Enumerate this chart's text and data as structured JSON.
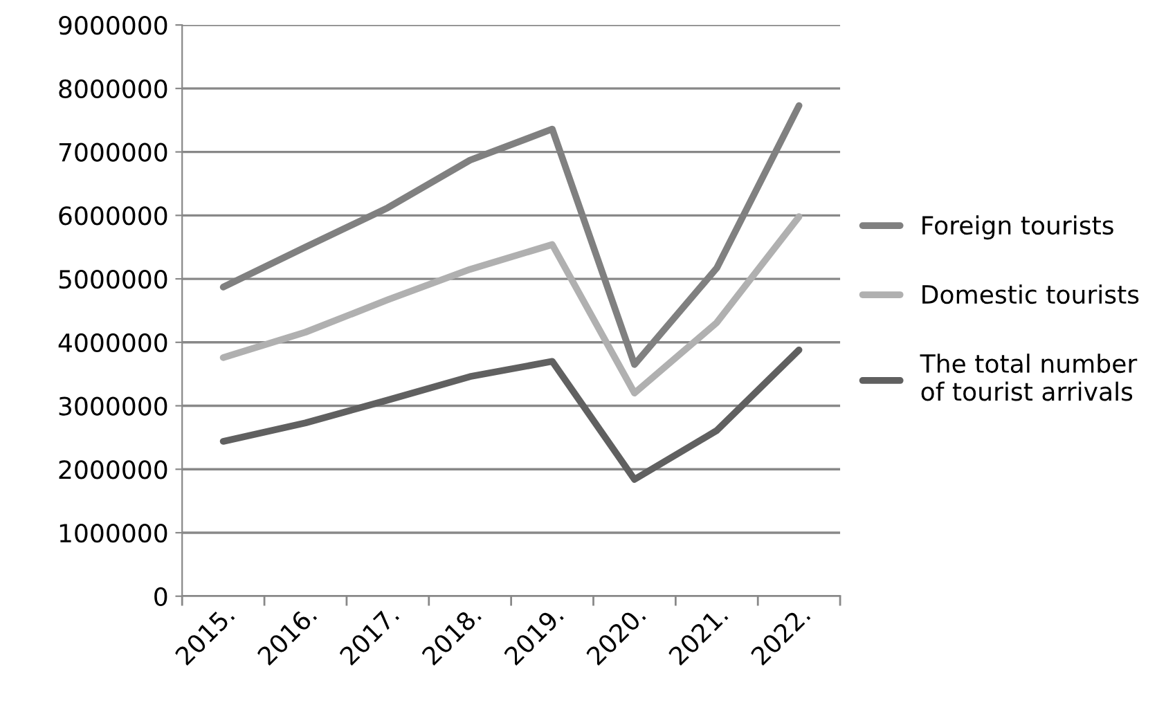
{
  "chart_data": {
    "type": "line",
    "categories": [
      "2015.",
      "2016.",
      "2017.",
      "2018.",
      "2019.",
      "2020.",
      "2021.",
      "2022."
    ],
    "series": [
      {
        "name": "Foreign tourists",
        "color": "#808080",
        "values": [
          4870000,
          5500000,
          6120000,
          6870000,
          7360000,
          3650000,
          5170000,
          7730000
        ]
      },
      {
        "name": "Domestic tourists",
        "color": "#b0b0b0",
        "values": [
          3760000,
          4160000,
          4670000,
          5150000,
          5540000,
          3200000,
          4310000,
          5980000
        ]
      },
      {
        "name": "The total number\nof tourist arrivals",
        "color": "#606060",
        "values": [
          2440000,
          2730000,
          3090000,
          3460000,
          3700000,
          1840000,
          2610000,
          3880000
        ]
      }
    ],
    "ylim": [
      0,
      9000000
    ],
    "yticks": [
      0,
      1000000,
      2000000,
      3000000,
      4000000,
      5000000,
      6000000,
      7000000,
      8000000,
      9000000
    ],
    "grid": "y",
    "legend": "right",
    "marker": "none",
    "line_style": "solid"
  }
}
